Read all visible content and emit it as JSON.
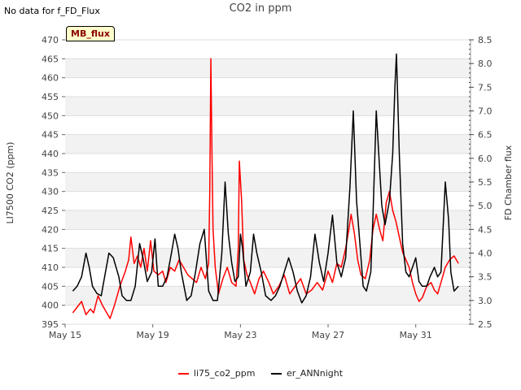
{
  "header": {
    "no_data_text": "No data for f_FD_Flux"
  },
  "badge": {
    "label": "MB_flux"
  },
  "chart_data": {
    "type": "line",
    "title": "CO2 in ppm",
    "xlabel": "",
    "ylabel": "LI7500 CO2 (ppm)",
    "y2label": "FD Chamber flux",
    "x_range_days": [
      15,
      33.5
    ],
    "ylim": [
      395,
      470
    ],
    "y2lim": [
      2.5,
      8.5
    ],
    "yticks": [
      395,
      400,
      405,
      410,
      415,
      420,
      425,
      430,
      435,
      440,
      445,
      450,
      455,
      460,
      465,
      470
    ],
    "y2ticks": [
      2.5,
      3.0,
      3.5,
      4.0,
      4.5,
      5.0,
      5.5,
      6.0,
      6.5,
      7.0,
      7.5,
      8.0,
      8.5
    ],
    "xticks": [
      {
        "day": 15,
        "label": "May 15"
      },
      {
        "day": 19,
        "label": "May 19"
      },
      {
        "day": 23,
        "label": "May 23"
      },
      {
        "day": 27,
        "label": "May 27"
      },
      {
        "day": 31,
        "label": "May 31"
      }
    ],
    "grid": "horizontal bands",
    "legend_position": "bottom-center",
    "series": [
      {
        "name": "li75_co2_ppm",
        "axis": "left",
        "color": "#ff0000",
        "points": [
          [
            15.35,
            398
          ],
          [
            15.55,
            399.5
          ],
          [
            15.75,
            401
          ],
          [
            15.95,
            397.5
          ],
          [
            16.15,
            399
          ],
          [
            16.3,
            398
          ],
          [
            16.5,
            402.5
          ],
          [
            16.7,
            400
          ],
          [
            16.9,
            398
          ],
          [
            17.05,
            396.5
          ],
          [
            17.25,
            400
          ],
          [
            17.5,
            405
          ],
          [
            17.75,
            409
          ],
          [
            17.9,
            412
          ],
          [
            18.0,
            418
          ],
          [
            18.15,
            411
          ],
          [
            18.3,
            413
          ],
          [
            18.45,
            410
          ],
          [
            18.6,
            415
          ],
          [
            18.75,
            409
          ],
          [
            18.9,
            417
          ],
          [
            19.05,
            409
          ],
          [
            19.25,
            408
          ],
          [
            19.45,
            409
          ],
          [
            19.6,
            406
          ],
          [
            19.8,
            410
          ],
          [
            20.0,
            409
          ],
          [
            20.2,
            412
          ],
          [
            20.4,
            410
          ],
          [
            20.6,
            408
          ],
          [
            20.8,
            407
          ],
          [
            21.0,
            406
          ],
          [
            21.2,
            410
          ],
          [
            21.4,
            407
          ],
          [
            21.55,
            411
          ],
          [
            21.6,
            430
          ],
          [
            21.65,
            465
          ],
          [
            21.7,
            440
          ],
          [
            21.75,
            420
          ],
          [
            21.85,
            410
          ],
          [
            22.0,
            403
          ],
          [
            22.2,
            407
          ],
          [
            22.4,
            410
          ],
          [
            22.6,
            406
          ],
          [
            22.8,
            405
          ],
          [
            22.9,
            415
          ],
          [
            22.95,
            438
          ],
          [
            23.05,
            428
          ],
          [
            23.15,
            412
          ],
          [
            23.3,
            408
          ],
          [
            23.45,
            406
          ],
          [
            23.65,
            403
          ],
          [
            23.85,
            407
          ],
          [
            24.05,
            409
          ],
          [
            24.3,
            406
          ],
          [
            24.5,
            403
          ],
          [
            24.75,
            405
          ],
          [
            25.0,
            408
          ],
          [
            25.25,
            403
          ],
          [
            25.5,
            405
          ],
          [
            25.75,
            407
          ],
          [
            26.0,
            403
          ],
          [
            26.25,
            404
          ],
          [
            26.5,
            406
          ],
          [
            26.75,
            404
          ],
          [
            27.0,
            409
          ],
          [
            27.2,
            406
          ],
          [
            27.4,
            411
          ],
          [
            27.6,
            410
          ],
          [
            27.8,
            415
          ],
          [
            27.95,
            420
          ],
          [
            28.05,
            424
          ],
          [
            28.2,
            419
          ],
          [
            28.35,
            412
          ],
          [
            28.5,
            408
          ],
          [
            28.7,
            407
          ],
          [
            28.9,
            412
          ],
          [
            29.05,
            420
          ],
          [
            29.2,
            424
          ],
          [
            29.35,
            420
          ],
          [
            29.5,
            417
          ],
          [
            29.65,
            427
          ],
          [
            29.8,
            430
          ],
          [
            29.95,
            425
          ],
          [
            30.1,
            422
          ],
          [
            30.25,
            418
          ],
          [
            30.4,
            414
          ],
          [
            30.55,
            412
          ],
          [
            30.7,
            410
          ],
          [
            30.85,
            406
          ],
          [
            31.0,
            403
          ],
          [
            31.15,
            401
          ],
          [
            31.3,
            402
          ],
          [
            31.5,
            405
          ],
          [
            31.7,
            406
          ],
          [
            31.85,
            404
          ],
          [
            32.0,
            403
          ],
          [
            32.15,
            406
          ],
          [
            32.35,
            410
          ],
          [
            32.55,
            412
          ],
          [
            32.75,
            413
          ],
          [
            32.95,
            411
          ]
        ]
      },
      {
        "name": "er_ANNnight",
        "axis": "right",
        "color": "#000000",
        "points": [
          [
            15.35,
            3.2
          ],
          [
            15.55,
            3.3
          ],
          [
            15.75,
            3.5
          ],
          [
            15.95,
            4.0
          ],
          [
            16.1,
            3.7
          ],
          [
            16.25,
            3.3
          ],
          [
            16.45,
            3.15
          ],
          [
            16.65,
            3.1
          ],
          [
            16.8,
            3.5
          ],
          [
            17.0,
            4.0
          ],
          [
            17.2,
            3.9
          ],
          [
            17.45,
            3.5
          ],
          [
            17.6,
            3.1
          ],
          [
            17.8,
            3.0
          ],
          [
            18.0,
            3.0
          ],
          [
            18.2,
            3.3
          ],
          [
            18.4,
            4.2
          ],
          [
            18.55,
            3.9
          ],
          [
            18.75,
            3.4
          ],
          [
            18.95,
            3.6
          ],
          [
            19.1,
            4.3
          ],
          [
            19.25,
            3.3
          ],
          [
            19.45,
            3.3
          ],
          [
            19.65,
            3.5
          ],
          [
            19.85,
            4.0
          ],
          [
            20.0,
            4.4
          ],
          [
            20.15,
            4.1
          ],
          [
            20.3,
            3.6
          ],
          [
            20.55,
            3.0
          ],
          [
            20.75,
            3.1
          ],
          [
            20.95,
            3.6
          ],
          [
            21.15,
            4.2
          ],
          [
            21.35,
            4.5
          ],
          [
            21.55,
            3.2
          ],
          [
            21.75,
            3.0
          ],
          [
            21.95,
            3.0
          ],
          [
            22.15,
            4.0
          ],
          [
            22.3,
            5.5
          ],
          [
            22.45,
            4.4
          ],
          [
            22.6,
            3.8
          ],
          [
            22.75,
            3.4
          ],
          [
            22.9,
            3.5
          ],
          [
            23.0,
            4.4
          ],
          [
            23.1,
            4.1
          ],
          [
            23.25,
            3.3
          ],
          [
            23.45,
            3.6
          ],
          [
            23.6,
            4.4
          ],
          [
            23.75,
            4.0
          ],
          [
            23.95,
            3.6
          ],
          [
            24.15,
            3.1
          ],
          [
            24.4,
            3.0
          ],
          [
            24.6,
            3.1
          ],
          [
            24.8,
            3.3
          ],
          [
            25.0,
            3.6
          ],
          [
            25.2,
            3.9
          ],
          [
            25.4,
            3.6
          ],
          [
            25.6,
            3.2
          ],
          [
            25.8,
            2.95
          ],
          [
            26.0,
            3.1
          ],
          [
            26.2,
            3.5
          ],
          [
            26.4,
            4.4
          ],
          [
            26.6,
            3.8
          ],
          [
            26.8,
            3.4
          ],
          [
            27.0,
            4.0
          ],
          [
            27.2,
            4.8
          ],
          [
            27.4,
            3.8
          ],
          [
            27.6,
            3.5
          ],
          [
            27.8,
            3.9
          ],
          [
            28.0,
            5.4
          ],
          [
            28.15,
            7.0
          ],
          [
            28.3,
            5.1
          ],
          [
            28.45,
            4.2
          ],
          [
            28.6,
            3.3
          ],
          [
            28.75,
            3.2
          ],
          [
            28.95,
            3.6
          ],
          [
            29.05,
            4.8
          ],
          [
            29.2,
            7.0
          ],
          [
            29.3,
            6.2
          ],
          [
            29.45,
            5.0
          ],
          [
            29.6,
            4.6
          ],
          [
            29.8,
            5.1
          ],
          [
            29.95,
            6.1
          ],
          [
            30.05,
            7.5
          ],
          [
            30.12,
            8.2
          ],
          [
            30.25,
            6.1
          ],
          [
            30.4,
            4.2
          ],
          [
            30.55,
            3.6
          ],
          [
            30.7,
            3.5
          ],
          [
            30.85,
            3.7
          ],
          [
            31.0,
            3.9
          ],
          [
            31.15,
            3.4
          ],
          [
            31.3,
            3.3
          ],
          [
            31.5,
            3.3
          ],
          [
            31.65,
            3.5
          ],
          [
            31.85,
            3.7
          ],
          [
            32.0,
            3.5
          ],
          [
            32.15,
            3.6
          ],
          [
            32.35,
            5.5
          ],
          [
            32.5,
            4.7
          ],
          [
            32.6,
            3.6
          ],
          [
            32.75,
            3.2
          ],
          [
            32.95,
            3.3
          ]
        ]
      }
    ]
  }
}
